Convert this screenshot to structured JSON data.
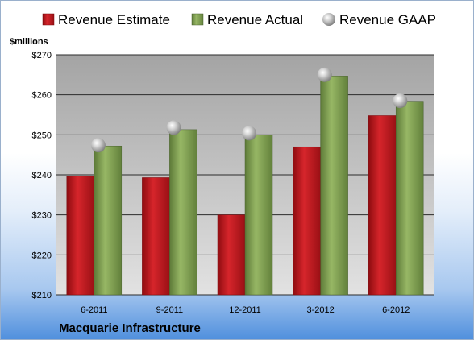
{
  "chart_data": {
    "type": "bar",
    "unit_label": "$millions",
    "categories": [
      "6-2011",
      "9-2011",
      "12-2011",
      "3-2012",
      "6-2012"
    ],
    "series": [
      {
        "name": "Revenue Estimate",
        "kind": "bar",
        "color": "#c8161d",
        "values": [
          239.7,
          239.3,
          230.0,
          247.0,
          254.8
        ]
      },
      {
        "name": "Revenue Actual",
        "kind": "bar",
        "color": "#86a55a",
        "values": [
          247.2,
          251.3,
          250.0,
          264.7,
          258.4
        ]
      },
      {
        "name": "Revenue GAAP",
        "kind": "marker",
        "color": "#a9a9a9",
        "values": [
          247.4,
          251.8,
          250.4,
          265.0,
          258.5
        ]
      }
    ],
    "ylim": [
      210,
      270
    ],
    "yticks": [
      210,
      220,
      230,
      240,
      250,
      260,
      270
    ],
    "ytick_labels": [
      "$210",
      "$220",
      "$230",
      "$240",
      "$250",
      "$260",
      "$270"
    ],
    "grid": true,
    "legend_position": "top"
  },
  "footer": {
    "company": "Macquarie Infrastructure"
  }
}
